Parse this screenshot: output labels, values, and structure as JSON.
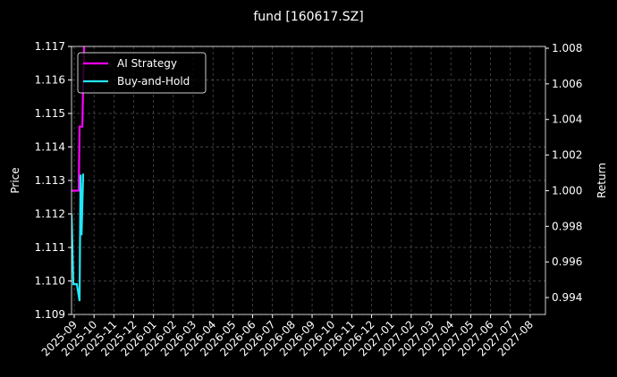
{
  "chart_data": {
    "type": "line",
    "title": "fund [160617.SZ]",
    "y_label": "Price",
    "y2_label": "Return",
    "xlim": [
      -0.135,
      23.77
    ],
    "xticks": [
      {
        "value": 0,
        "label": "2025-09"
      },
      {
        "value": 1,
        "label": "2025-10"
      },
      {
        "value": 2,
        "label": "2025-11"
      },
      {
        "value": 3,
        "label": "2025-12"
      },
      {
        "value": 4,
        "label": "2026-01"
      },
      {
        "value": 5,
        "label": "2026-02"
      },
      {
        "value": 6,
        "label": "2026-03"
      },
      {
        "value": 7,
        "label": "2026-04"
      },
      {
        "value": 8,
        "label": "2026-05"
      },
      {
        "value": 9,
        "label": "2026-06"
      },
      {
        "value": 10,
        "label": "2026-07"
      },
      {
        "value": 11,
        "label": "2026-08"
      },
      {
        "value": 12,
        "label": "2026-09"
      },
      {
        "value": 13,
        "label": "2026-10"
      },
      {
        "value": 14,
        "label": "2026-11"
      },
      {
        "value": 15,
        "label": "2026-12"
      },
      {
        "value": 16,
        "label": "2027-01"
      },
      {
        "value": 17,
        "label": "2027-02"
      },
      {
        "value": 18,
        "label": "2027-03"
      },
      {
        "value": 19,
        "label": "2027-04"
      },
      {
        "value": 20,
        "label": "2027-05"
      },
      {
        "value": 21,
        "label": "2027-06"
      },
      {
        "value": 22,
        "label": "2027-07"
      },
      {
        "value": 23,
        "label": "2027-08"
      }
    ],
    "ylim": [
      1.109,
      1.117
    ],
    "yticks": [
      1.109,
      {
        "value": 1.11,
        "label": "1.110"
      },
      1.111,
      1.112,
      1.113,
      1.114,
      1.115,
      1.116,
      1.117
    ],
    "y2lim": [
      0.99305,
      1.0081
    ],
    "y2ticks": [
      0.994,
      0.996,
      0.998,
      {
        "value": 1,
        "label": "1.000"
      },
      1.002,
      1.004,
      1.006,
      1.008
    ],
    "grid": true,
    "legend": "upper left",
    "series": [
      {
        "name": "AI Strategy",
        "color": "#ff00ff",
        "axis": "y2",
        "x": [
          -0.135,
          0.23,
          0.27,
          0.41,
          0.45,
          0.5
        ],
        "values": [
          1.0,
          1.0,
          1.0036,
          1.0036,
          1.0059,
          1.0081
        ]
      },
      {
        "name": "Buy-and-Hold",
        "color": "#22e5f5",
        "axis": "y2",
        "x": [
          -0.135,
          -0.045,
          0.135,
          0.27,
          0.32,
          0.37,
          0.45,
          0.5
        ],
        "values": [
          0.99867,
          0.99475,
          0.99475,
          0.9938,
          1.0009,
          0.9975,
          1.0009,
          1.0009
        ]
      }
    ]
  }
}
